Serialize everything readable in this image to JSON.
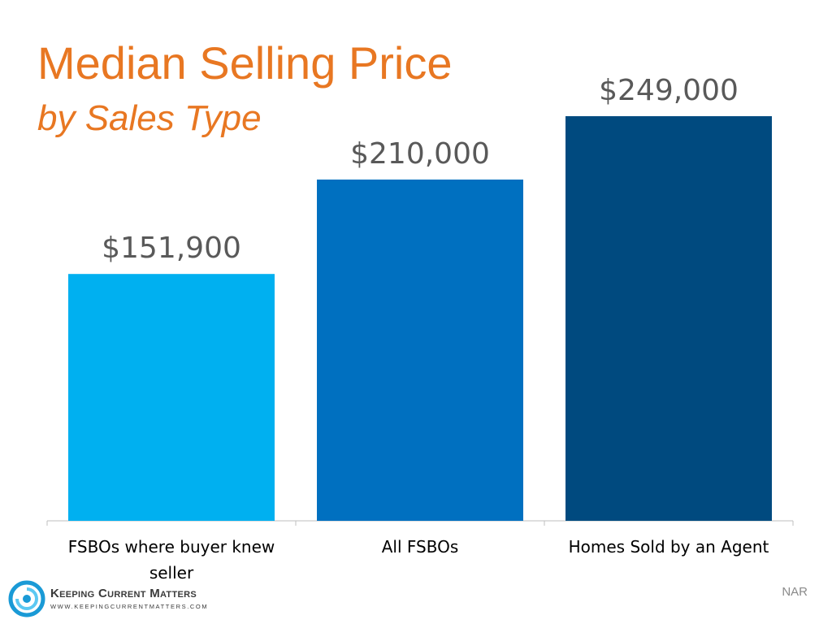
{
  "title": "Median Selling Price",
  "subtitle": "by Sales Type",
  "source": "NAR",
  "logo": {
    "name": "Keeping Current Matters",
    "url": "WWW.KEEPINGCURRENTMATTERS.COM",
    "color": "#1A9AD6"
  },
  "chart_data": {
    "type": "bar",
    "categories": [
      [
        "FSBOs where buyer knew",
        "seller"
      ],
      [
        "All FSBOs"
      ],
      [
        "Homes Sold by an Agent"
      ]
    ],
    "values": [
      151900,
      210000,
      249000
    ],
    "data_labels": [
      "$151,900",
      "$210,000",
      "$249,000"
    ],
    "colors": [
      "#00B0F0",
      "#0070C0",
      "#004A7F"
    ],
    "ylim": [
      0,
      300000
    ],
    "grid": false,
    "legend": "none",
    "axis_color": "#BFBFBF"
  }
}
